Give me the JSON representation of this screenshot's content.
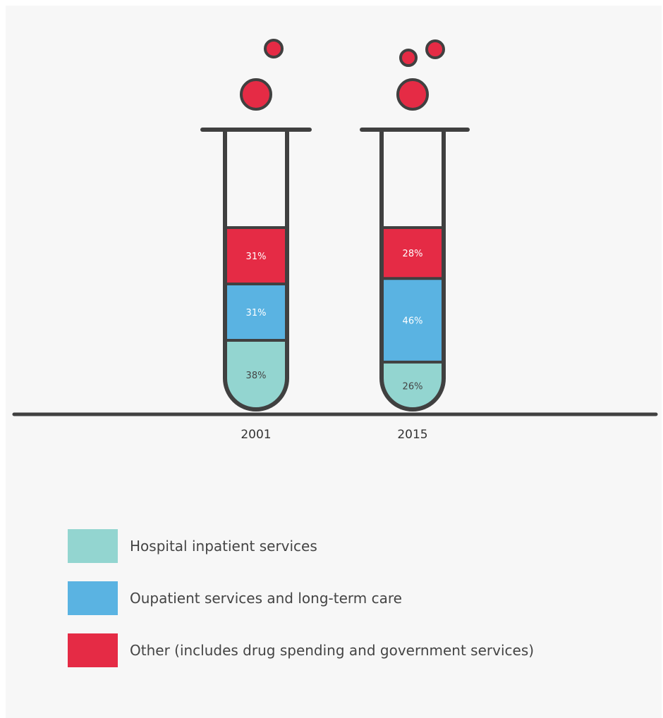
{
  "colors": {
    "hospital_inpatient": "#93d5d0",
    "outpatient_longterm": "#5ab3e2",
    "other": "#e52b45",
    "tube_outline": "#404040",
    "background": "#f7f7f7"
  },
  "chart_data": {
    "type": "bar",
    "stacked": true,
    "style": "test-tube stacked percentage bars",
    "categories": [
      "2001",
      "2015"
    ],
    "series": [
      {
        "name": "Hospital inpatient services",
        "values": [
          38,
          26
        ],
        "color_key": "hospital_inpatient"
      },
      {
        "name": "Oupatient services and long-term care",
        "values": [
          31,
          46
        ],
        "color_key": "outpatient_longterm"
      },
      {
        "name": "Other (includes drug spending and government services)",
        "values": [
          31,
          28
        ],
        "color_key": "other"
      }
    ],
    "labels": [
      [
        "38%",
        "31%",
        "31%"
      ],
      [
        "26%",
        "46%",
        "28%"
      ]
    ],
    "title": "",
    "xlabel": "",
    "ylabel": "",
    "ylim": [
      0,
      100
    ],
    "grid": false,
    "legend_position": "bottom"
  }
}
